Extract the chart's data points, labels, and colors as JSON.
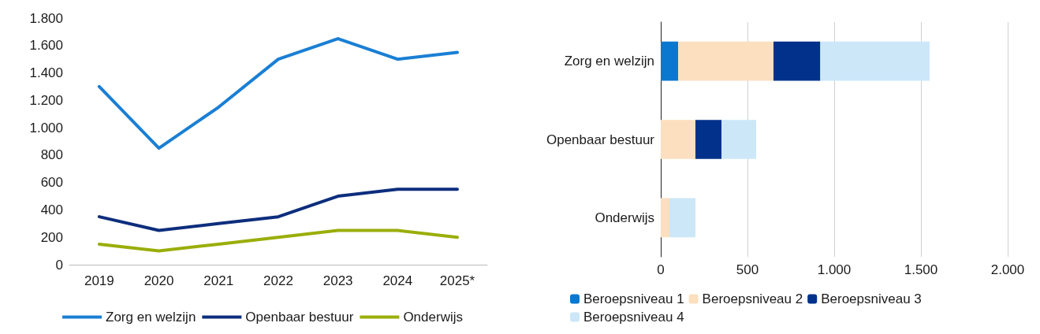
{
  "chart_data": [
    {
      "type": "line",
      "categories": [
        "2019",
        "2020",
        "2021",
        "2022",
        "2023",
        "2024",
        "2025*"
      ],
      "series": [
        {
          "name": "Zorg en welzijn",
          "color": "#1a7fd4",
          "values": [
            1300,
            850,
            1150,
            1500,
            1650,
            1500,
            1550
          ]
        },
        {
          "name": "Openbaar bestuur",
          "color": "#0d2e7d",
          "values": [
            350,
            250,
            300,
            350,
            500,
            550,
            550
          ]
        },
        {
          "name": "Onderwijs",
          "color": "#9aae0a",
          "values": [
            150,
            100,
            150,
            200,
            250,
            250,
            200
          ]
        }
      ],
      "ylim": [
        0,
        1800
      ],
      "yticks": [
        0,
        200,
        400,
        600,
        800,
        {
          "value": 1000,
          "label": "1.000"
        },
        {
          "value": 1200,
          "label": "1.200"
        },
        {
          "value": 1400,
          "label": "1.400"
        },
        {
          "value": 1600,
          "label": "1.600"
        },
        {
          "value": 1800,
          "label": "1.800"
        }
      ],
      "grid": false,
      "legend": "bottom",
      "marker": "none",
      "line_style": "solid"
    },
    {
      "type": "bar",
      "orientation": "horizontal",
      "stacked": true,
      "categories": [
        "Zorg en welzijn",
        "Openbaar bestuur",
        "Onderwijs"
      ],
      "series": [
        {
          "name": "Beroepsniveau 1",
          "color": "#0b78d0",
          "values": [
            100,
            0,
            0
          ]
        },
        {
          "name": "Beroepsniveau 2",
          "color": "#fbdfbf",
          "values": [
            550,
            200,
            50
          ]
        },
        {
          "name": "Beroepsniveau 3",
          "color": "#01318a",
          "values": [
            270,
            150,
            0
          ]
        },
        {
          "name": "Beroepsniveau 4",
          "color": "#cce7f8",
          "values": [
            630,
            200,
            150
          ]
        }
      ],
      "xlim": [
        0,
        2000
      ],
      "xticks": [
        0,
        500,
        {
          "value": 1000,
          "label": "1.000"
        },
        {
          "value": 1500,
          "label": "1.500"
        },
        {
          "value": 2000,
          "label": "2.000"
        }
      ],
      "grid": "x",
      "legend": "bottom"
    }
  ]
}
